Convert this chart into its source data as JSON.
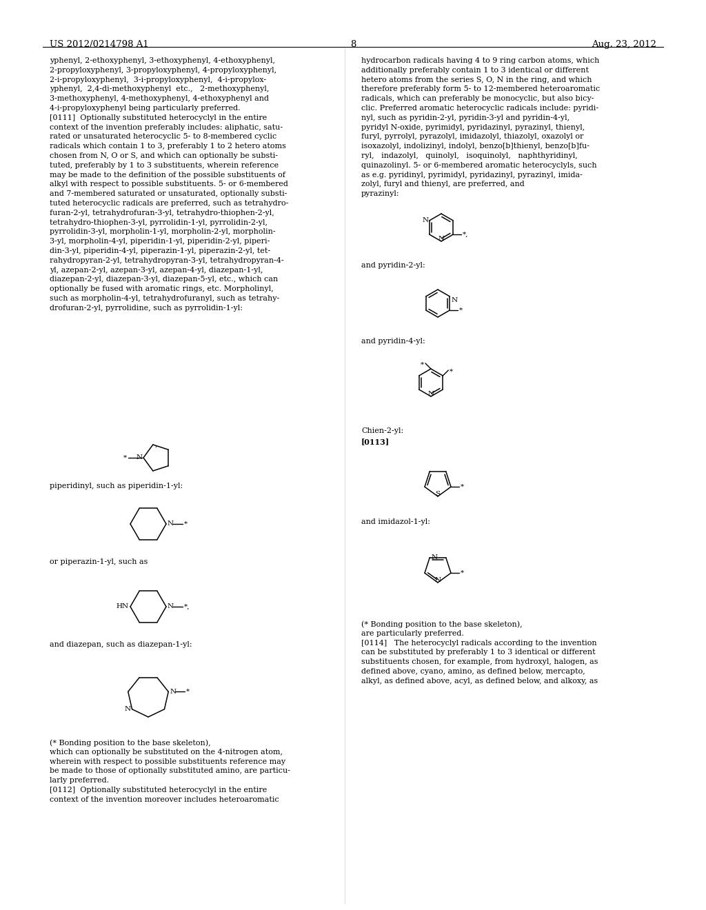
{
  "background_color": "#ffffff",
  "header_left": "US 2012/0214798 A1",
  "header_center": "8",
  "header_right": "Aug. 23, 2012",
  "left_col_text": [
    "yphenyl, 2-ethoxyphenyl, 3-ethoxyphenyl, 4-ethoxyphenyl,",
    "2-propyloxyphenyl, 3-propyloxyphenyl, 4-propyloxyphenyl,",
    "2-i-propyloxyphenyl,  3-i-propyloxyphenyl,  4-i-propylox-",
    "yphenyl,  2,4-di-methoxyphenyl  etc.,   2-methoxyphenyl,",
    "3-methoxyphenyl, 4-methoxyphenyl, 4-ethoxyphenyl and",
    "4-i-propyloxyphenyl being particularly preferred.",
    "[0111]  Optionally substituted heterocyclyl in the entire",
    "context of the invention preferably includes: aliphatic, satu-",
    "rated or unsaturated heterocyclic 5- to 8-membered cyclic",
    "radicals which contain 1 to 3, preferably 1 to 2 hetero atoms",
    "chosen from N, O or S, and which can optionally be substi-",
    "tuted, preferably by 1 to 3 substituents, wherein reference",
    "may be made to the definition of the possible substituents of",
    "alkyl with respect to possible substituents. 5- or 6-membered",
    "and 7-membered saturated or unsaturated, optionally substi-",
    "tuted heterocyclic radicals are preferred, such as tetrahydro-",
    "furan-2-yl, tetrahydrofuran-3-yl, tetrahydro-thiophen-2-yl,",
    "tetrahydro-thiophen-3-yl, pyrrolidin-1-yl, pyrrolidin-2-yl,",
    "pyrrolidin-3-yl, morpholin-1-yl, morpholin-2-yl, morpholin-",
    "3-yl, morpholin-4-yl, piperidin-1-yl, piperidin-2-yl, piperi-",
    "din-3-yl, piperidin-4-yl, piperazin-1-yl, piperazin-2-yl, tet-",
    "rahydropyran-2-yl, tetrahydropyran-3-yl, tetrahydropyran-4-",
    "yl, azepan-2-yl, azepan-3-yl, azepan-4-yl, diazepan-1-yl,",
    "diazepan-2-yl, diazepan-3-yl, diazepan-5-yl, etc., which can",
    "optionally be fused with aromatic rings, etc. Morpholinyl,",
    "such as morpholin-4-yl, tetrahydrofuranyl, such as tetrahy-",
    "drofuran-2-yl, pyrrolidine, such as pyrrolidin-1-yl:"
  ],
  "left_label1": "piperidinyl, such as piperidin-1-yl:",
  "left_label2": "or piperazin-1-yl, such as",
  "left_label3": "and diazepan, such as diazepan-1-yl:",
  "left_footer": [
    "(* Bonding position to the base skeleton),",
    "which can optionally be substituted on the 4-nitrogen atom,",
    "wherein with respect to possible substituents reference may",
    "be made to those of optionally substituted amino, are particu-",
    "larly preferred.",
    "[0112]  Optionally substituted heterocyclyl in the entire",
    "context of the invention moreover includes heteroaromatic"
  ],
  "right_col_text": [
    "hydrocarbon radicals having 4 to 9 ring carbon atoms, which",
    "additionally preferably contain 1 to 3 identical or different",
    "hetero atoms from the series S, O, N in the ring, and which",
    "therefore preferably form 5- to 12-membered heteroaromatic",
    "radicals, which can preferably be monocyclic, but also bicy-",
    "clic. Preferred aromatic heterocyclic radicals include: pyridi-",
    "nyl, such as pyridin-2-yl, pyridin-3-yl and pyridin-4-yl,",
    "pyridyl N-oxide, pyrimidyl, pyridazinyl, pyrazinyl, thienyl,",
    "furyl, pyrrolyl, pyrazolyl, imidazolyl, thiazolyl, oxazolyl or",
    "isoxazolyl, indolizinyl, indolyl, benzo[b]thienyl, benzo[b]fu-",
    "ryl,   indazolyl,   quinolyl,   isoquinolyl,   naphthyridinyl,",
    "quinazolinyl. 5- or 6-membered aromatic heterocyclyls, such",
    "as e.g. pyridinyl, pyrimidyl, pyridazinyl, pyrazinyl, imida-",
    "zolyl, furyl and thienyl, are preferred, and",
    "pyrazinyl:"
  ],
  "right_label1": "and pyridin-2-yl:",
  "right_label2": "and pyridin-4-yl:",
  "right_label3": "Chien-2-yl:",
  "right_label3b": "[0113]",
  "right_label4": "and imidazol-1-yl:",
  "right_footer": [
    "(* Bonding position to the base skeleton),",
    "are particularly preferred.",
    "[0114]   The heterocyclyl radicals according to the invention",
    "can be substituted by preferably 1 to 3 identical or different",
    "substituents chosen, for example, from hydroxyl, halogen, as",
    "defined above, cyano, amino, as defined below, mercapto,",
    "alkyl, as defined above, acyl, as defined below, and alkoxy, as"
  ]
}
